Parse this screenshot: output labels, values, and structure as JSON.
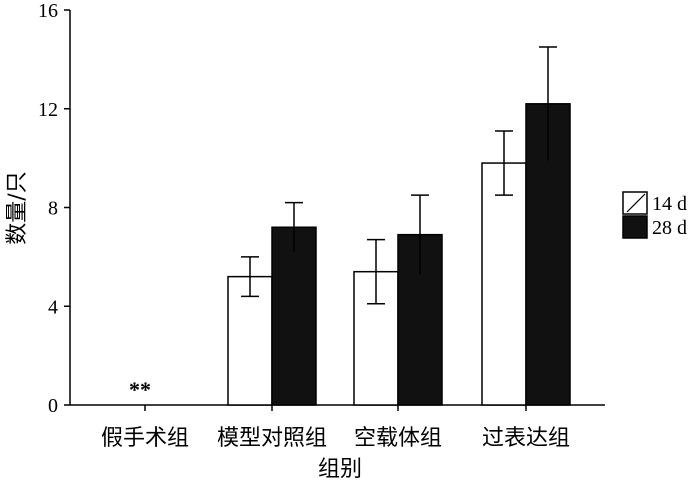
{
  "chart_data": {
    "type": "bar",
    "title": "",
    "xlabel": "组别",
    "ylabel": "数量/只",
    "categories": [
      "假手术组",
      "模型对照组",
      "空载体组",
      "过表达组"
    ],
    "series": [
      {
        "name": "14 d",
        "fill": "#ffffff",
        "values": [
          0,
          5.2,
          5.4,
          9.8
        ],
        "errors": [
          0,
          0.8,
          1.3,
          1.3
        ]
      },
      {
        "name": "28 d",
        "fill": "#111111",
        "values": [
          0,
          7.2,
          6.9,
          12.2
        ],
        "errors": [
          0,
          1.0,
          1.6,
          2.3
        ]
      }
    ],
    "ylim": [
      0,
      16
    ],
    "yticks": [
      0,
      4,
      8,
      12,
      16
    ],
    "yticklabels": [
      "0",
      "4",
      "8",
      "12",
      "16"
    ],
    "annotations": [
      {
        "category_index": 0,
        "text": "**"
      }
    ],
    "legend_position": "right",
    "grid": false
  }
}
